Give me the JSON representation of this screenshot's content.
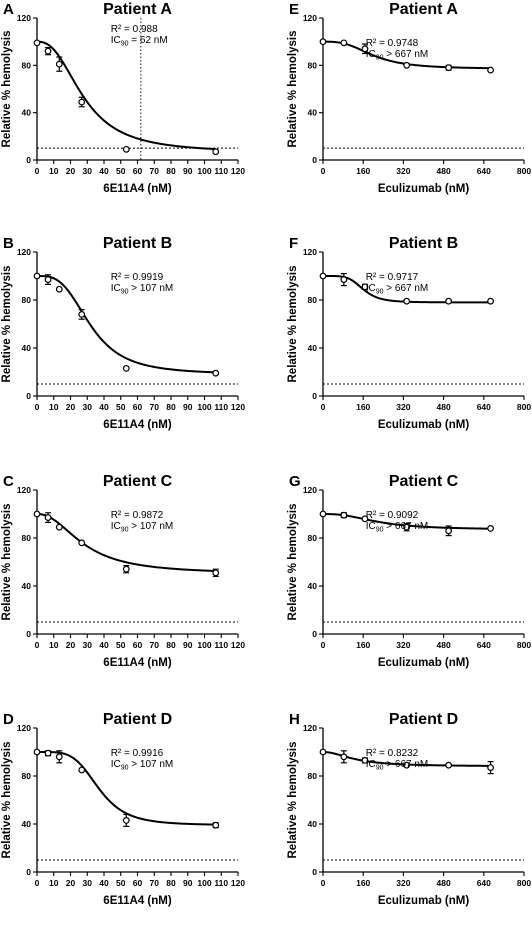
{
  "y_axis_label": "Relative % hemolysis",
  "chart_data": [
    {
      "type": "scatter",
      "panel": "A",
      "title": "Patient A",
      "xlabel": "6E11A4 (nM)",
      "ylabel": "Relative % hemolysis",
      "xlim": [
        0,
        120
      ],
      "ylim": [
        0,
        120
      ],
      "x_ticks": [
        0,
        10,
        20,
        30,
        40,
        50,
        60,
        70,
        80,
        90,
        100,
        110,
        120
      ],
      "y_ticks": [
        0,
        40,
        80,
        120
      ],
      "annotation": {
        "r2": "R² = 0.988",
        "ic90_prefix": "IC",
        "ic90_sub": "90",
        "ic90_value": " = 62 nM"
      },
      "threshold": 10,
      "vertical_marker": 62,
      "x": [
        0,
        6.6,
        13.3,
        26.7,
        53.3,
        106.7
      ],
      "y": [
        99,
        92,
        81,
        49,
        9,
        7
      ],
      "error": [
        0,
        3,
        6,
        4,
        0,
        0
      ],
      "fit": {
        "top": 100,
        "bottom": 6,
        "ec50": 28,
        "hill": 2.5
      }
    },
    {
      "type": "scatter",
      "panel": "B",
      "title": "Patient B",
      "xlabel": "6E11A4 (nM)",
      "ylabel": "Relative % hemolysis",
      "xlim": [
        0,
        120
      ],
      "ylim": [
        0,
        120
      ],
      "x_ticks": [
        0,
        10,
        20,
        30,
        40,
        50,
        60,
        70,
        80,
        90,
        100,
        110,
        120
      ],
      "y_ticks": [
        0,
        40,
        80,
        120
      ],
      "annotation": {
        "r2": "R² = 0.9919",
        "ic90_prefix": "IC",
        "ic90_sub": "90",
        "ic90_value": " > 107 nM"
      },
      "threshold": 10,
      "x": [
        0,
        6.6,
        13.3,
        26.7,
        53.3,
        106.7
      ],
      "y": [
        100,
        97,
        89,
        68,
        23,
        19
      ],
      "error": [
        0,
        4,
        0,
        4,
        0,
        0
      ],
      "fit": {
        "top": 100,
        "bottom": 18,
        "ec50": 32,
        "hill": 3.2
      }
    },
    {
      "type": "scatter",
      "panel": "C",
      "title": "Patient C",
      "xlabel": "6E11A4 (nM)",
      "ylabel": "Relative % hemolysis",
      "xlim": [
        0,
        120
      ],
      "ylim": [
        0,
        120
      ],
      "x_ticks": [
        0,
        10,
        20,
        30,
        40,
        50,
        60,
        70,
        80,
        90,
        100,
        110,
        120
      ],
      "y_ticks": [
        0,
        40,
        80,
        120
      ],
      "annotation": {
        "r2": "R² = 0.9872",
        "ic90_prefix": "IC",
        "ic90_sub": "90",
        "ic90_value": " > 107 nM"
      },
      "threshold": 10,
      "x": [
        0,
        6.6,
        13.3,
        26.7,
        53.3,
        106.7
      ],
      "y": [
        100,
        97,
        89,
        76,
        54,
        51
      ],
      "error": [
        0,
        4,
        0,
        0,
        3,
        3
      ],
      "fit": {
        "top": 100,
        "bottom": 50,
        "ec50": 28,
        "hill": 2.2
      }
    },
    {
      "type": "scatter",
      "panel": "D",
      "title": "Patient D",
      "xlabel": "6E11A4 (nM)",
      "ylabel": "Relative % hemolysis",
      "xlim": [
        0,
        120
      ],
      "ylim": [
        0,
        120
      ],
      "x_ticks": [
        0,
        10,
        20,
        30,
        40,
        50,
        60,
        70,
        80,
        90,
        100,
        110,
        120
      ],
      "y_ticks": [
        0,
        40,
        80,
        120
      ],
      "annotation": {
        "r2": "R² = 0.9916",
        "ic90_prefix": "IC",
        "ic90_sub": "90",
        "ic90_value": " > 107 nM"
      },
      "threshold": 10,
      "x": [
        0,
        6.6,
        13.3,
        26.7,
        53.3,
        106.7
      ],
      "y": [
        100,
        99,
        96,
        85,
        43,
        39
      ],
      "error": [
        0,
        2,
        5,
        0,
        5,
        2
      ],
      "fit": {
        "top": 100,
        "bottom": 39,
        "ec50": 37,
        "hill": 4.5
      }
    },
    {
      "type": "scatter",
      "panel": "E",
      "title": "Patient A",
      "xlabel": "Eculizumab (nM)",
      "ylabel": "Relative % hemolysis",
      "xlim": [
        0,
        800
      ],
      "ylim": [
        0,
        120
      ],
      "x_ticks": [
        0,
        160,
        320,
        480,
        640,
        800
      ],
      "y_ticks": [
        0,
        40,
        80,
        120
      ],
      "annotation": {
        "r2": "R² = 0.9748",
        "ic90_prefix": "IC",
        "ic90_sub": "90",
        "ic90_value": " > 667 nM"
      },
      "threshold": 10,
      "x": [
        0,
        83,
        167,
        333,
        500,
        667
      ],
      "y": [
        100,
        99,
        94,
        80,
        78,
        76
      ],
      "error": [
        0,
        0,
        4,
        0,
        2,
        0
      ],
      "fit": {
        "top": 100,
        "bottom": 77,
        "ec50": 200,
        "hill": 3.0
      }
    },
    {
      "type": "scatter",
      "panel": "F",
      "title": "Patient B",
      "xlabel": "Eculizumab (nM)",
      "ylabel": "Relative % hemolysis",
      "xlim": [
        0,
        800
      ],
      "ylim": [
        0,
        120
      ],
      "x_ticks": [
        0,
        160,
        320,
        480,
        640,
        800
      ],
      "y_ticks": [
        0,
        40,
        80,
        120
      ],
      "annotation": {
        "r2": "R² = 0.9717",
        "ic90_prefix": "IC",
        "ic90_sub": "90",
        "ic90_value": " > 667 nM"
      },
      "threshold": 10,
      "x": [
        0,
        83,
        167,
        333,
        500,
        667
      ],
      "y": [
        100,
        97,
        91,
        79,
        79,
        79
      ],
      "error": [
        0,
        5,
        2,
        0,
        0,
        0
      ],
      "fit": {
        "top": 100,
        "bottom": 78,
        "ec50": 160,
        "hill": 5.0
      }
    },
    {
      "type": "scatter",
      "panel": "G",
      "title": "Patient C",
      "xlabel": "Eculizumab (nM)",
      "ylabel": "Relative % hemolysis",
      "xlim": [
        0,
        800
      ],
      "ylim": [
        0,
        120
      ],
      "x_ticks": [
        0,
        160,
        320,
        480,
        640,
        800
      ],
      "y_ticks": [
        0,
        40,
        80,
        120
      ],
      "annotation": {
        "r2": "R² = 0.9092",
        "ic90_prefix": "IC",
        "ic90_sub": "90",
        "ic90_value": " > 667 nM"
      },
      "threshold": 10,
      "x": [
        0,
        83,
        167,
        333,
        500,
        667
      ],
      "y": [
        100,
        99,
        96,
        89,
        86,
        88
      ],
      "error": [
        0,
        2,
        0,
        3,
        4,
        0
      ],
      "fit": {
        "top": 100,
        "bottom": 87,
        "ec50": 220,
        "hill": 2.5
      }
    },
    {
      "type": "scatter",
      "panel": "H",
      "title": "Patient D",
      "xlabel": "Eculizumab (nM)",
      "ylabel": "Relative % hemolysis",
      "xlim": [
        0,
        800
      ],
      "ylim": [
        0,
        120
      ],
      "x_ticks": [
        0,
        160,
        320,
        480,
        640,
        800
      ],
      "y_ticks": [
        0,
        40,
        80,
        120
      ],
      "annotation": {
        "r2": "R² = 0.8232",
        "ic90_prefix": "IC",
        "ic90_sub": "90",
        "ic90_value": " > 667 nM"
      },
      "threshold": 10,
      "x": [
        0,
        83,
        167,
        333,
        500,
        667
      ],
      "y": [
        100,
        96,
        93,
        89,
        89,
        87
      ],
      "error": [
        0,
        5,
        2,
        0,
        0,
        5
      ],
      "fit": {
        "top": 100,
        "bottom": 88,
        "ec50": 130,
        "hill": 2.0
      }
    }
  ]
}
